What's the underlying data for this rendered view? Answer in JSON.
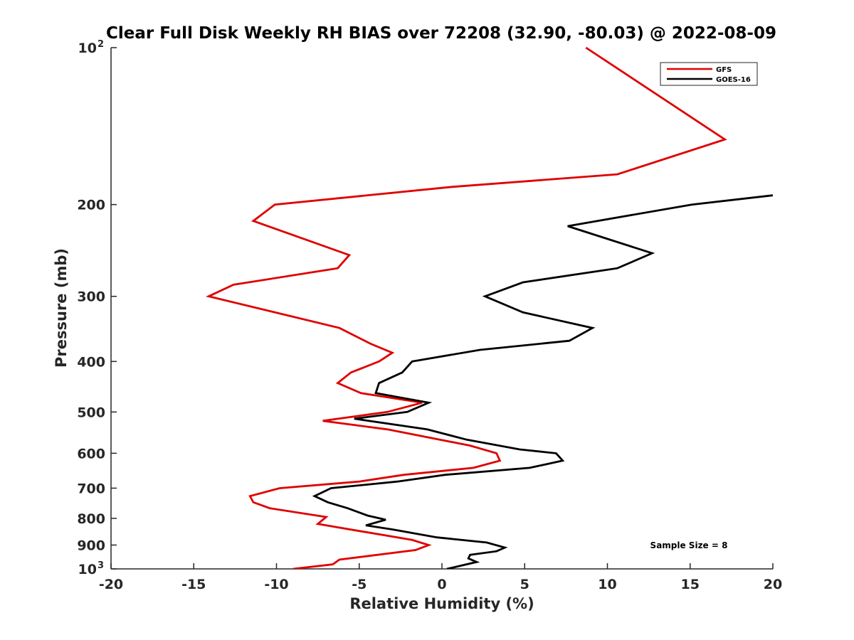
{
  "chart_data": {
    "type": "line",
    "title": "Clear Full Disk Weekly RH BIAS over 72208 (32.90, -80.03) @ 2022-08-09",
    "xlabel": "Relative Humidity (%)",
    "ylabel": "Pressure (mb)",
    "xlim": [
      -20,
      20
    ],
    "ylim": [
      100,
      1000
    ],
    "yscale": "log",
    "y_reversed": true,
    "grid": false,
    "legend_position": "top-right",
    "x_ticks": [
      "-20",
      "-15",
      "-10",
      "-5",
      "0",
      "5",
      "10",
      "15",
      "20"
    ],
    "y_ticks": [
      {
        "value": 100,
        "label": "10",
        "sup": "2"
      },
      {
        "value": 200,
        "label": "200"
      },
      {
        "value": 300,
        "label": "300"
      },
      {
        "value": 400,
        "label": "400"
      },
      {
        "value": 500,
        "label": "500"
      },
      {
        "value": 600,
        "label": "600"
      },
      {
        "value": 700,
        "label": "700"
      },
      {
        "value": 800,
        "label": "800"
      },
      {
        "value": 900,
        "label": "900"
      },
      {
        "value": 1000,
        "label": "10",
        "sup": "3"
      }
    ],
    "annotation": "Sample Size = 8",
    "series": [
      {
        "name": "GFS",
        "color": "#e00000",
        "points": [
          {
            "x": 8.7,
            "y": 100
          },
          {
            "x": 17.1,
            "y": 150
          },
          {
            "x": 10.6,
            "y": 175
          },
          {
            "x": 0.6,
            "y": 185
          },
          {
            "x": -10.1,
            "y": 200
          },
          {
            "x": -11.4,
            "y": 215
          },
          {
            "x": -5.6,
            "y": 250
          },
          {
            "x": -6.3,
            "y": 265
          },
          {
            "x": -12.6,
            "y": 285
          },
          {
            "x": -14.1,
            "y": 300
          },
          {
            "x": -6.2,
            "y": 345
          },
          {
            "x": -4.3,
            "y": 370
          },
          {
            "x": -3.0,
            "y": 385
          },
          {
            "x": -3.8,
            "y": 400
          },
          {
            "x": -5.5,
            "y": 420
          },
          {
            "x": -6.3,
            "y": 440
          },
          {
            "x": -4.9,
            "y": 460
          },
          {
            "x": -1.2,
            "y": 480
          },
          {
            "x": -3.3,
            "y": 500
          },
          {
            "x": -7.2,
            "y": 520
          },
          {
            "x": -3.3,
            "y": 540
          },
          {
            "x": 1.7,
            "y": 580
          },
          {
            "x": 3.3,
            "y": 600
          },
          {
            "x": 3.5,
            "y": 620
          },
          {
            "x": 1.9,
            "y": 640
          },
          {
            "x": -2.3,
            "y": 660
          },
          {
            "x": -5.0,
            "y": 680
          },
          {
            "x": -9.8,
            "y": 700
          },
          {
            "x": -11.6,
            "y": 725
          },
          {
            "x": -11.4,
            "y": 745
          },
          {
            "x": -10.4,
            "y": 765
          },
          {
            "x": -7.0,
            "y": 795
          },
          {
            "x": -7.5,
            "y": 820
          },
          {
            "x": -1.8,
            "y": 880
          },
          {
            "x": -0.8,
            "y": 900
          },
          {
            "x": -1.6,
            "y": 920
          },
          {
            "x": -6.2,
            "y": 960
          },
          {
            "x": -6.6,
            "y": 980
          },
          {
            "x": -9.0,
            "y": 1000
          }
        ]
      },
      {
        "name": "GOES-16",
        "color": "#000000",
        "points": [
          {
            "x": 20.0,
            "y": 192
          },
          {
            "x": 15.1,
            "y": 200
          },
          {
            "x": 7.6,
            "y": 220
          },
          {
            "x": 12.7,
            "y": 248
          },
          {
            "x": 10.6,
            "y": 265
          },
          {
            "x": 4.9,
            "y": 282
          },
          {
            "x": 2.6,
            "y": 300
          },
          {
            "x": 4.9,
            "y": 322
          },
          {
            "x": 9.1,
            "y": 345
          },
          {
            "x": 7.7,
            "y": 365
          },
          {
            "x": 2.3,
            "y": 380
          },
          {
            "x": -1.8,
            "y": 400
          },
          {
            "x": -2.4,
            "y": 420
          },
          {
            "x": -3.8,
            "y": 440
          },
          {
            "x": -4.0,
            "y": 460
          },
          {
            "x": -0.8,
            "y": 480
          },
          {
            "x": -2.1,
            "y": 500
          },
          {
            "x": -5.3,
            "y": 515
          },
          {
            "x": -0.9,
            "y": 540
          },
          {
            "x": 1.5,
            "y": 565
          },
          {
            "x": 4.7,
            "y": 590
          },
          {
            "x": 6.9,
            "y": 600
          },
          {
            "x": 7.3,
            "y": 620
          },
          {
            "x": 5.3,
            "y": 640
          },
          {
            "x": 0.2,
            "y": 660
          },
          {
            "x": -2.7,
            "y": 680
          },
          {
            "x": -6.7,
            "y": 700
          },
          {
            "x": -7.7,
            "y": 725
          },
          {
            "x": -6.9,
            "y": 745
          },
          {
            "x": -5.7,
            "y": 765
          },
          {
            "x": -4.5,
            "y": 790
          },
          {
            "x": -3.4,
            "y": 805
          },
          {
            "x": -4.6,
            "y": 825
          },
          {
            "x": -3.0,
            "y": 840
          },
          {
            "x": -0.3,
            "y": 870
          },
          {
            "x": 2.7,
            "y": 890
          },
          {
            "x": 3.8,
            "y": 910
          },
          {
            "x": 3.3,
            "y": 925
          },
          {
            "x": 1.7,
            "y": 940
          },
          {
            "x": 1.6,
            "y": 955
          },
          {
            "x": 2.1,
            "y": 970
          },
          {
            "x": 0.3,
            "y": 1000
          }
        ]
      }
    ]
  }
}
